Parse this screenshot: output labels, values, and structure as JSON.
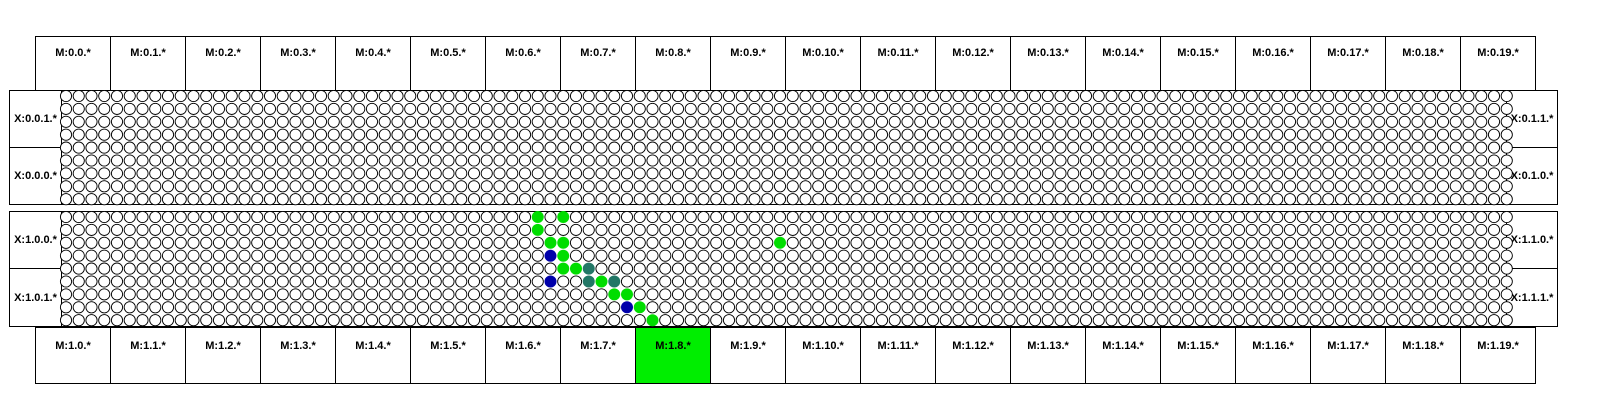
{
  "top_modules": [
    "M:0.0.*",
    "M:0.1.*",
    "M:0.2.*",
    "M:0.3.*",
    "M:0.4.*",
    "M:0.5.*",
    "M:0.6.*",
    "M:0.7.*",
    "M:0.8.*",
    "M:0.9.*",
    "M:0.10.*",
    "M:0.11.*",
    "M:0.12.*",
    "M:0.13.*",
    "M:0.14.*",
    "M:0.15.*",
    "M:0.16.*",
    "M:0.17.*",
    "M:0.18.*",
    "M:0.19.*"
  ],
  "bottom_modules": [
    "M:1.0.*",
    "M:1.1.*",
    "M:1.2.*",
    "M:1.3.*",
    "M:1.4.*",
    "M:1.5.*",
    "M:1.6.*",
    "M:1.7.*",
    "M:1.8.*",
    "M:1.9.*",
    "M:1.10.*",
    "M:1.11.*",
    "M:1.12.*",
    "M:1.13.*",
    "M:1.14.*",
    "M:1.15.*",
    "M:1.16.*",
    "M:1.17.*",
    "M:1.18.*",
    "M:1.19.*"
  ],
  "highlighted_bottom_module": "M:1.8.*",
  "left_labels": [
    "X:0.0.1.*",
    "X:0.0.0.*",
    "X:1.0.0.*",
    "X:1.0.1.*"
  ],
  "right_labels": [
    "X:0.1.1.*",
    "X:0.1.0.*",
    "X:1.1.0.*",
    "X:1.1.1.*"
  ],
  "colors": {
    "highlight": "#00ee00",
    "green": "#00dd00",
    "blue": "#0000aa",
    "teal": "#227766",
    "empty": "#ffffff",
    "line": "#000000"
  },
  "grid": {
    "columns": 114,
    "rows_per_band": 9
  },
  "active_nodes": [
    {
      "band": 1,
      "row": 0,
      "col": 37,
      "color": "green"
    },
    {
      "band": 1,
      "row": 0,
      "col": 39,
      "color": "green"
    },
    {
      "band": 1,
      "row": 1,
      "col": 37,
      "color": "green"
    },
    {
      "band": 1,
      "row": 2,
      "col": 38,
      "color": "green"
    },
    {
      "band": 1,
      "row": 2,
      "col": 39,
      "color": "green"
    },
    {
      "band": 1,
      "row": 2,
      "col": 56,
      "color": "green"
    },
    {
      "band": 1,
      "row": 3,
      "col": 38,
      "color": "blue"
    },
    {
      "band": 1,
      "row": 3,
      "col": 39,
      "color": "green"
    },
    {
      "band": 1,
      "row": 4,
      "col": 39,
      "color": "green"
    },
    {
      "band": 1,
      "row": 4,
      "col": 40,
      "color": "green"
    },
    {
      "band": 1,
      "row": 4,
      "col": 41,
      "color": "teal"
    },
    {
      "band": 1,
      "row": 5,
      "col": 38,
      "color": "blue"
    },
    {
      "band": 1,
      "row": 5,
      "col": 41,
      "color": "teal"
    },
    {
      "band": 1,
      "row": 5,
      "col": 42,
      "color": "green"
    },
    {
      "band": 1,
      "row": 5,
      "col": 43,
      "color": "teal"
    },
    {
      "band": 1,
      "row": 6,
      "col": 43,
      "color": "green"
    },
    {
      "band": 1,
      "row": 6,
      "col": 44,
      "color": "green"
    },
    {
      "band": 1,
      "row": 7,
      "col": 44,
      "color": "blue"
    },
    {
      "band": 1,
      "row": 7,
      "col": 45,
      "color": "green"
    },
    {
      "band": 1,
      "row": 8,
      "col": 46,
      "color": "green"
    }
  ]
}
